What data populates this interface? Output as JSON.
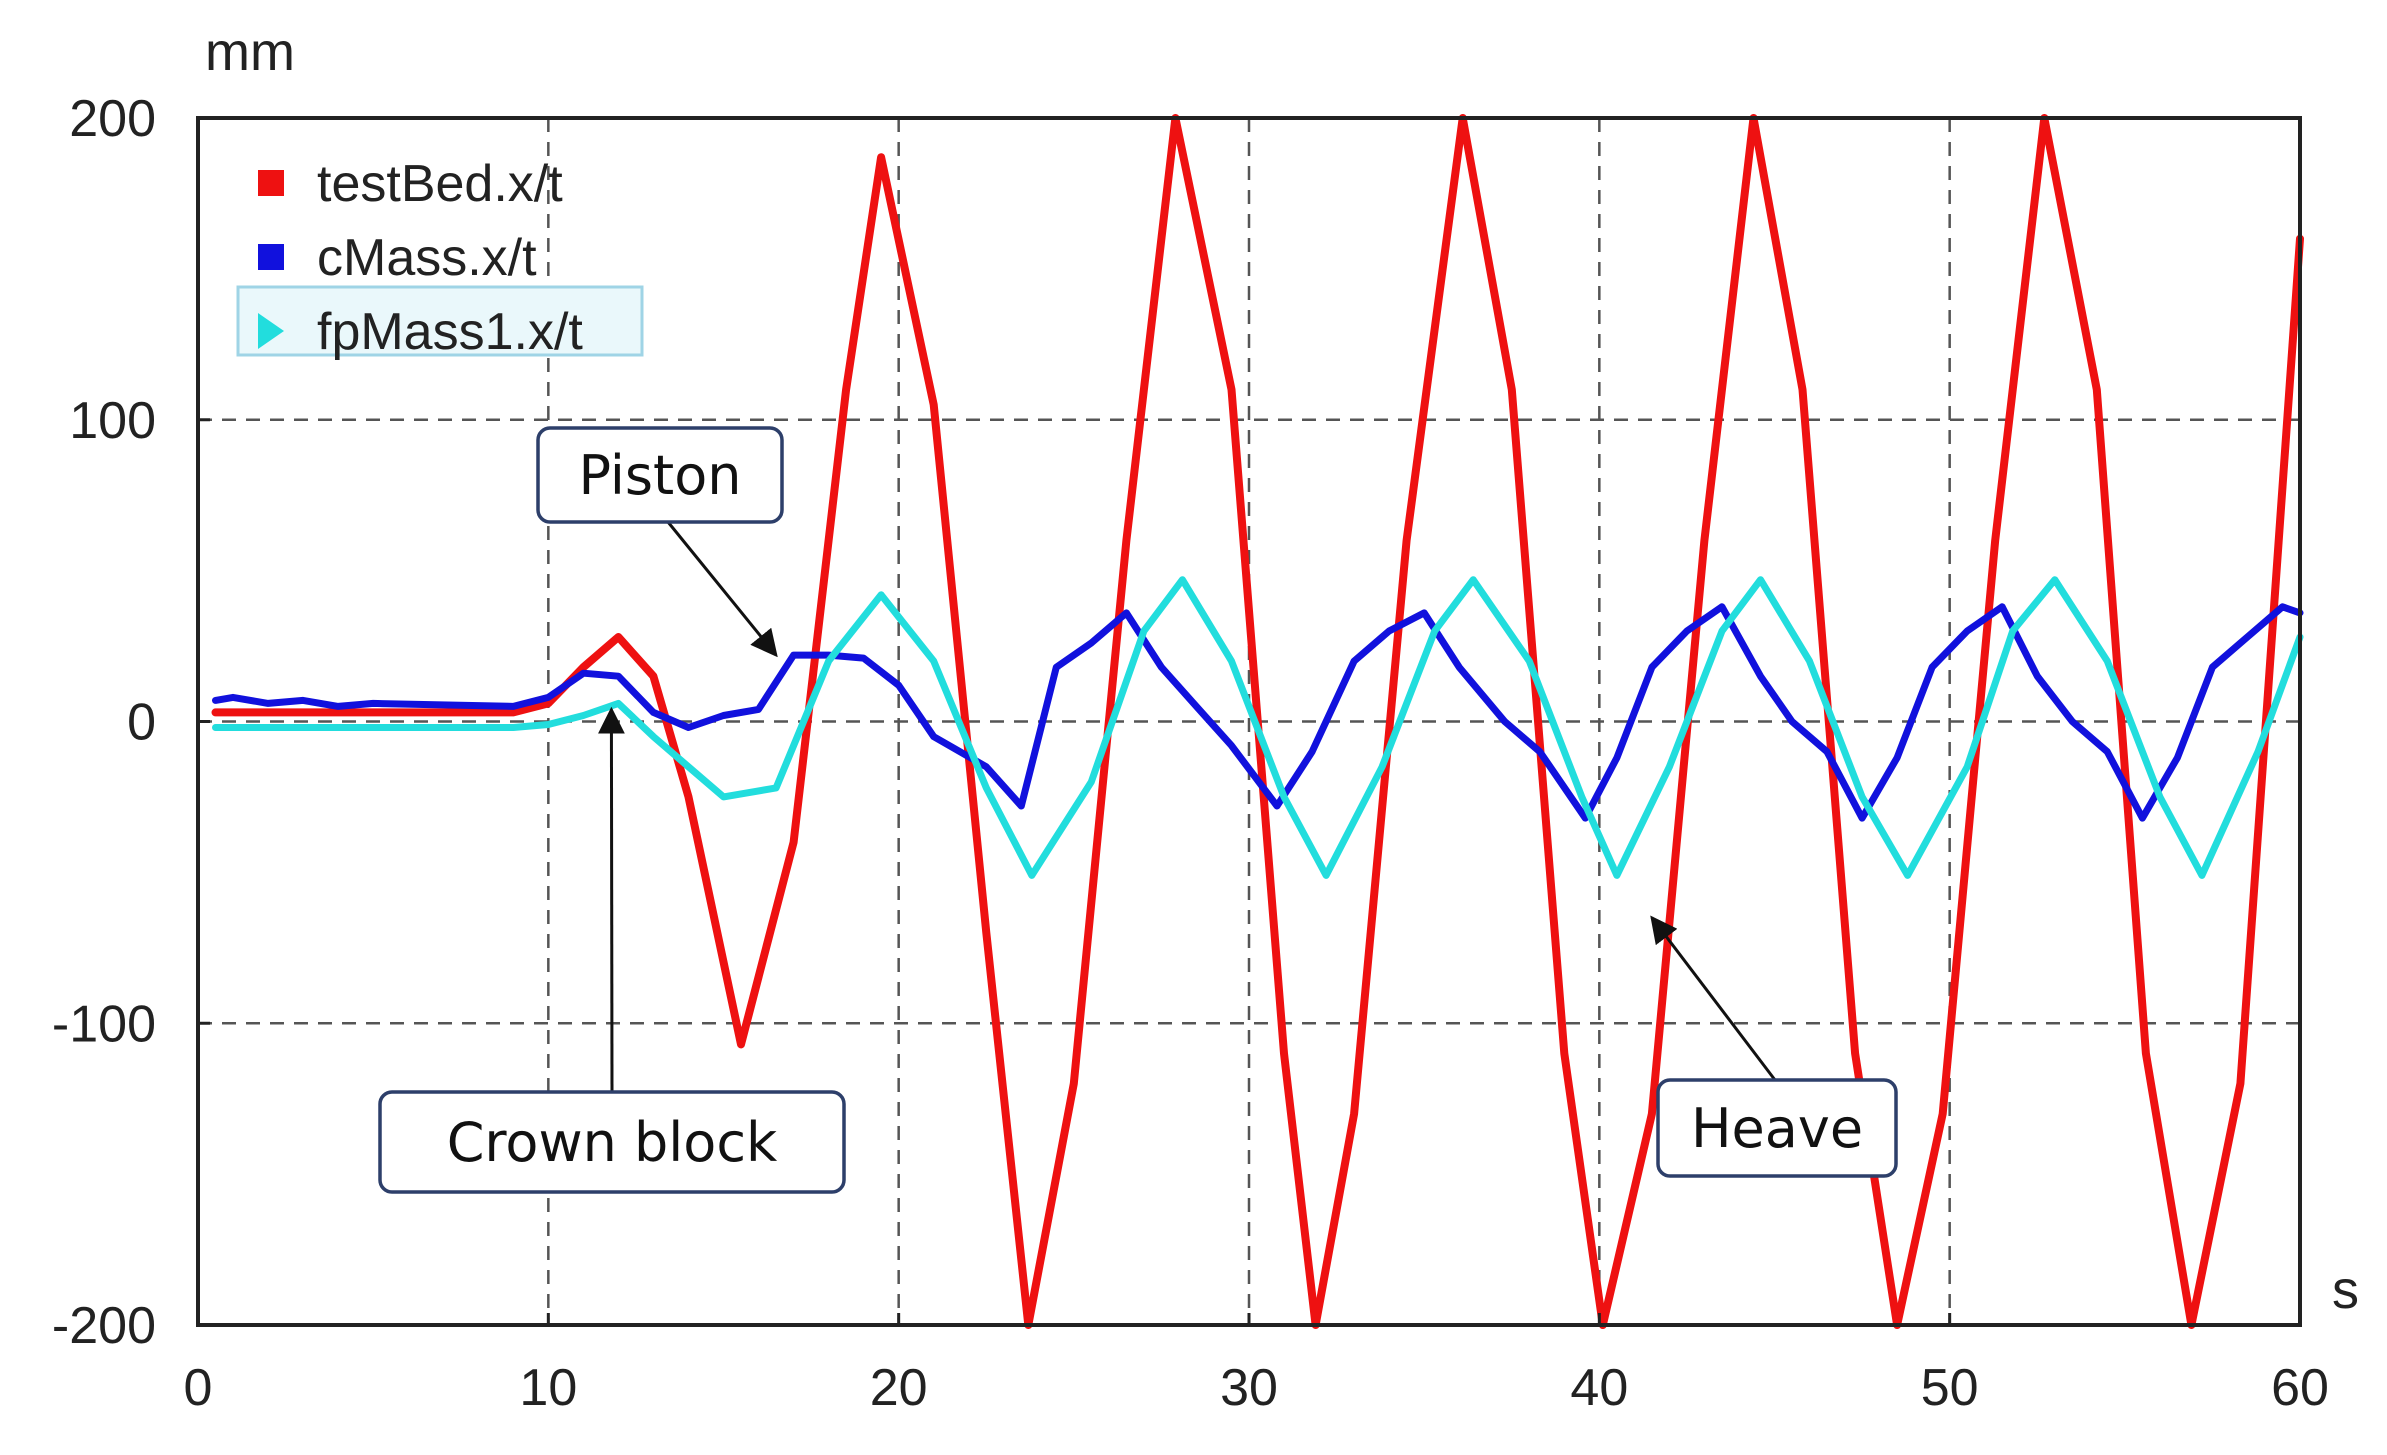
{
  "chart_data": {
    "type": "line",
    "title": "",
    "xlabel": "",
    "ylabel": "",
    "x_unit": "s",
    "y_unit": "mm",
    "xlim": [
      0,
      60
    ],
    "ylim": [
      -200,
      200
    ],
    "x_ticks": [
      "0",
      "10",
      "20",
      "30",
      "40",
      "50",
      "60"
    ],
    "y_ticks": [
      "200",
      "100",
      "0",
      "-100",
      "-200"
    ],
    "grid": true,
    "legend_position": "top-left",
    "series": [
      {
        "name": "testBed.x/t",
        "color": "#ee1111",
        "marker": "square",
        "x": [
          0.5,
          9,
          10,
          11,
          12,
          13,
          14,
          15.5,
          17,
          18.5,
          19.5,
          21,
          22.5,
          23.7,
          25,
          26.5,
          27.9,
          29.5,
          31,
          31.9,
          33,
          34.5,
          36.1,
          37.5,
          39,
          40.1,
          41.5,
          43,
          44.4,
          45.8,
          47.3,
          48.5,
          49.8,
          51.3,
          52.7,
          54.2,
          55.6,
          56.9,
          58.3,
          60
        ],
        "y": [
          3,
          3,
          6,
          18,
          28,
          15,
          -25,
          -107,
          -40,
          110,
          187,
          105,
          -70,
          -200,
          -120,
          60,
          200,
          110,
          -110,
          -200,
          -130,
          60,
          200,
          110,
          -110,
          -200,
          -130,
          60,
          200,
          110,
          -110,
          -200,
          -130,
          60,
          200,
          110,
          -110,
          -200,
          -120,
          160
        ]
      },
      {
        "name": "cMass.x/t",
        "color": "#1111dd",
        "marker": "square",
        "x": [
          0.5,
          1,
          2,
          3,
          4,
          5,
          9,
          10,
          11,
          12,
          13,
          14,
          15,
          16,
          17,
          18,
          19,
          20,
          21,
          22.5,
          23.5,
          24.5,
          25.5,
          26.5,
          27.5,
          28.5,
          29.5,
          30.8,
          31.8,
          33,
          34,
          35,
          36,
          37.3,
          38.3,
          39.6,
          40.5,
          41.5,
          42.5,
          43.5,
          44.6,
          45.5,
          46.5,
          47.5,
          48.5,
          49.5,
          50.5,
          51.5,
          52.5,
          53.5,
          54.5,
          55.5,
          56.5,
          57.5,
          58.5,
          59.5,
          60
        ],
        "y": [
          7,
          8,
          6,
          7,
          5,
          6,
          5,
          8,
          16,
          15,
          3,
          -2,
          2,
          4,
          22,
          22,
          21,
          12,
          -5,
          -15,
          -28,
          18,
          26,
          36,
          18,
          5,
          -8,
          -28,
          -10,
          20,
          30,
          36,
          18,
          0,
          -10,
          -32,
          -12,
          18,
          30,
          38,
          15,
          0,
          -10,
          -32,
          -12,
          18,
          30,
          38,
          15,
          0,
          -10,
          -32,
          -12,
          18,
          28,
          38,
          36
        ]
      },
      {
        "name": "fpMass1.x/t",
        "color": "#22dddd",
        "marker": "triangle",
        "x": [
          0.5,
          9,
          10,
          11,
          12,
          13,
          14,
          15,
          16.5,
          18,
          19.5,
          21,
          22.5,
          23.8,
          25.5,
          27,
          28.1,
          29.5,
          31,
          32.2,
          33.8,
          35.3,
          36.4,
          38,
          39.5,
          40.5,
          42,
          43.5,
          44.6,
          46,
          47.5,
          48.8,
          50.5,
          51.8,
          53,
          54.5,
          56,
          57.2,
          58.8,
          60
        ],
        "y": [
          -2,
          -2,
          -1,
          2,
          6,
          -5,
          -15,
          -25,
          -22,
          20,
          42,
          20,
          -22,
          -51,
          -20,
          30,
          47,
          20,
          -25,
          -51,
          -15,
          30,
          47,
          20,
          -25,
          -51,
          -15,
          30,
          47,
          20,
          -25,
          -51,
          -15,
          30,
          47,
          20,
          -25,
          -51,
          -10,
          28
        ]
      }
    ],
    "annotations": [
      {
        "text": "Piston",
        "points_to": [
          16.5,
          22
        ]
      },
      {
        "text": "Crown block",
        "points_to": [
          11.8,
          4
        ]
      },
      {
        "text": "Heave",
        "points_to": [
          41.5,
          -65
        ]
      }
    ]
  }
}
